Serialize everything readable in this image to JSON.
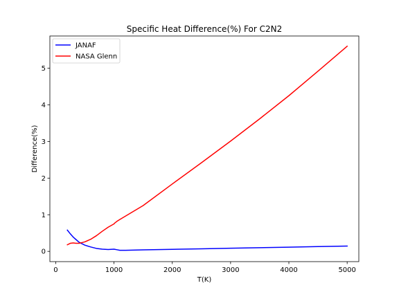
{
  "chart_data": {
    "type": "line",
    "title": "Specific Heat Difference(%) For C2N2",
    "xlabel": "T(K)",
    "ylabel": "Difference(%)",
    "xlim": [
      -100,
      5200
    ],
    "ylim": [
      -0.28,
      5.88
    ],
    "xticks": [
      0,
      1000,
      2000,
      3000,
      4000,
      5000
    ],
    "yticks": [
      0,
      1,
      2,
      3,
      4,
      5
    ],
    "grid": false,
    "legend_position": "top-left",
    "series": [
      {
        "name": "JANAF",
        "color": "#0000ff",
        "x": [
          200,
          250,
          300,
          350,
          400,
          450,
          500,
          600,
          700,
          800,
          900,
          1000,
          1050,
          1100,
          1200,
          1500,
          2000,
          2500,
          3000,
          3500,
          4000,
          4500,
          5000
        ],
        "y": [
          0.58,
          0.48,
          0.39,
          0.32,
          0.25,
          0.21,
          0.17,
          0.12,
          0.08,
          0.06,
          0.05,
          0.06,
          0.045,
          0.03,
          0.03,
          0.04,
          0.055,
          0.07,
          0.085,
          0.1,
          0.115,
          0.13,
          0.145
        ]
      },
      {
        "name": "NASA Glenn",
        "color": "#ff0000",
        "x": [
          200,
          250,
          300,
          350,
          400,
          500,
          600,
          700,
          800,
          900,
          1000,
          1010,
          1050,
          1100,
          1500,
          2000,
          2500,
          3000,
          3500,
          4000,
          4500,
          5000
        ],
        "y": [
          0.18,
          0.22,
          0.23,
          0.22,
          0.22,
          0.26,
          0.33,
          0.43,
          0.55,
          0.66,
          0.75,
          0.77,
          0.82,
          0.87,
          1.25,
          1.84,
          2.42,
          3.01,
          3.62,
          4.25,
          4.92,
          5.6
        ]
      }
    ]
  }
}
